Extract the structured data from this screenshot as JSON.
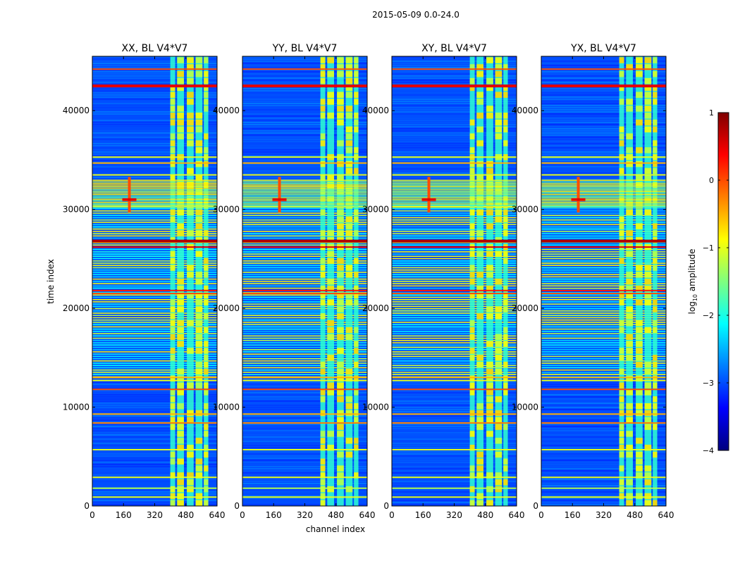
{
  "figure": {
    "suptitle": "2015-05-09 0.0-24.0",
    "xlabel": "channel index",
    "ylabel": "time index",
    "colorbar_label": "log₁₀ amplitude",
    "colorbar_label_base": "log",
    "colorbar_label_sub": "10",
    "colorbar_label_rest": " amplitude",
    "colorbar_ticks": [
      "1",
      "0",
      "−1",
      "−2",
      "−3",
      "−4"
    ],
    "colorbar_range": [
      -4,
      1
    ],
    "colormap": "jet",
    "colormap_stops": [
      "#00007f",
      "#0000ff",
      "#007fff",
      "#00ffff",
      "#7fff7f",
      "#ffff00",
      "#ff7f00",
      "#ff0000",
      "#7f0000"
    ]
  },
  "chart_data": [
    {
      "type": "heatmap",
      "title": "XX, BL V4*V7",
      "xlabel": "",
      "ylabel": "time index",
      "xlim": [
        0,
        640
      ],
      "ylim": [
        0,
        45500
      ],
      "xticks": [
        0,
        160,
        320,
        480,
        640
      ],
      "yticks": [
        0,
        10000,
        20000,
        30000,
        40000
      ],
      "rfi_channel_band": [
        400,
        600
      ],
      "rfi_channel_peak": 190,
      "rfi_time_band": [
        30200,
        33000
      ]
    },
    {
      "type": "heatmap",
      "title": "YY, BL V4*V7",
      "xlabel": "channel index",
      "ylabel": "",
      "xlim": [
        0,
        640
      ],
      "ylim": [
        0,
        45500
      ],
      "xticks": [
        0,
        160,
        320,
        480,
        640
      ],
      "yticks": [
        0,
        10000,
        20000,
        30000,
        40000
      ],
      "rfi_channel_band": [
        400,
        600
      ],
      "rfi_channel_peak": 190,
      "rfi_time_band": [
        30200,
        33000
      ]
    },
    {
      "type": "heatmap",
      "title": "XY, BL V4*V7",
      "xlabel": "",
      "ylabel": "",
      "xlim": [
        0,
        640
      ],
      "ylim": [
        0,
        45500
      ],
      "xticks": [
        0,
        160,
        320,
        480,
        640
      ],
      "yticks": [
        0,
        10000,
        20000,
        30000,
        40000
      ],
      "rfi_channel_band": [
        400,
        600
      ],
      "rfi_channel_peak": 190,
      "rfi_time_band": [
        30200,
        33000
      ]
    },
    {
      "type": "heatmap",
      "title": "YX, BL V4*V7",
      "xlabel": "",
      "ylabel": "",
      "xlim": [
        0,
        640
      ],
      "ylim": [
        0,
        45500
      ],
      "xticks": [
        0,
        160,
        320,
        480,
        640
      ],
      "yticks": [
        0,
        10000,
        20000,
        30000,
        40000
      ],
      "rfi_channel_band": [
        400,
        600
      ],
      "rfi_channel_peak": 190,
      "rfi_time_band": [
        30200,
        33000
      ]
    }
  ],
  "rfi_lines_time": [
    44200,
    42500,
    35300,
    34700,
    33500,
    26800,
    26200,
    21800,
    21500,
    13000,
    12700,
    11800,
    9300,
    8400,
    5700,
    2900,
    1800,
    900
  ],
  "rfi_lines_level": [
    0.8,
    0.9,
    0.6,
    0.7,
    0.6,
    0.95,
    0.9,
    0.85,
    0.8,
    0.7,
    0.6,
    0.8,
    0.7,
    0.75,
    0.6,
    0.6,
    0.55,
    0.6
  ]
}
